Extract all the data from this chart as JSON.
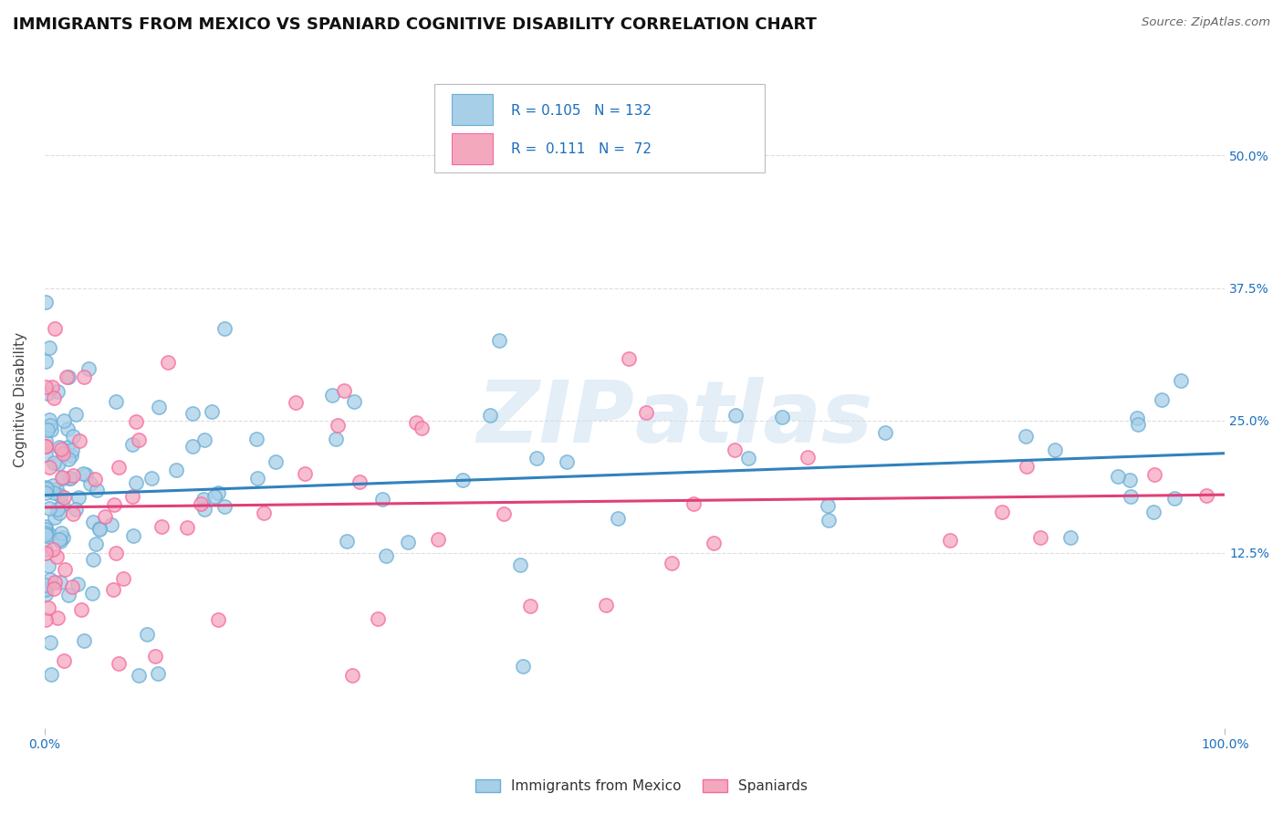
{
  "title": "IMMIGRANTS FROM MEXICO VS SPANIARD COGNITIVE DISABILITY CORRELATION CHART",
  "source": "Source: ZipAtlas.com",
  "ylabel": "Cognitive Disability",
  "xlim": [
    0.0,
    1.0
  ],
  "ylim": [
    -0.04,
    0.58
  ],
  "ytick_positions": [
    0.125,
    0.25,
    0.375,
    0.5
  ],
  "ytick_labels": [
    "12.5%",
    "25.0%",
    "37.5%",
    "50.0%"
  ],
  "R_mexico": 0.105,
  "N_mexico": 132,
  "R_spaniard": 0.111,
  "N_spaniard": 72,
  "color_mexico": "#a8cfe8",
  "color_spaniard": "#f4a8be",
  "edge_mexico": "#6baed6",
  "edge_spaniard": "#f768a1",
  "trend_color_mexico": "#3182bd",
  "trend_color_spaniard": "#e0407a",
  "watermark": "ZIPatlas",
  "background_color": "#ffffff",
  "grid_color": "#dddddd",
  "text_blue": "#1a6fbd",
  "title_fontsize": 13,
  "label_fontsize": 11,
  "tick_fontsize": 10
}
